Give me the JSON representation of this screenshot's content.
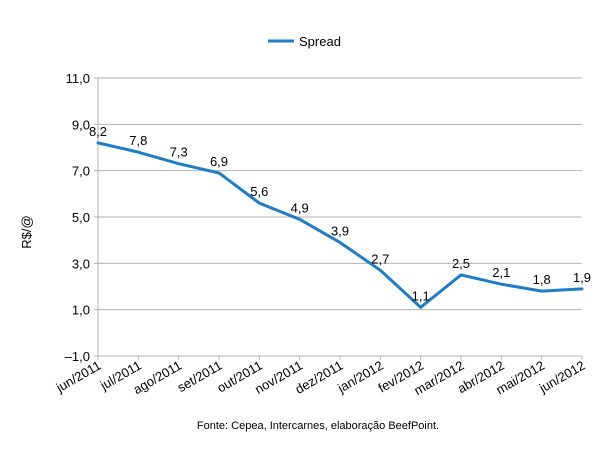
{
  "chart_data": {
    "type": "line",
    "categories": [
      "jun/2011",
      "jul/2011",
      "ago/2011",
      "set/2011",
      "out/2011",
      "nov/2011",
      "dez/2011",
      "jan/2012",
      "fev/2012",
      "mar/2012",
      "abr/2012",
      "mai/2012",
      "jun/2012"
    ],
    "series": [
      {
        "name": "Spread",
        "values": [
          8.2,
          7.8,
          7.3,
          6.9,
          5.6,
          4.9,
          3.9,
          2.7,
          1.1,
          2.5,
          2.1,
          1.8,
          1.9
        ],
        "labels": [
          "8,2",
          "7,8",
          "7,3",
          "6,9",
          "5,6",
          "4,9",
          "3,9",
          "2,7",
          "1,1",
          "2,5",
          "2,1",
          "1,8",
          "1,9"
        ],
        "color": "#1F7CC8"
      }
    ],
    "ylabel": "R$/@",
    "ylim": [
      -1,
      11
    ],
    "yticks": [
      -1,
      1,
      3,
      5,
      7,
      9,
      11
    ],
    "ytick_labels": [
      "–1,0",
      "1,0",
      "3,0",
      "5,0",
      "7,0",
      "9,0",
      "11,0"
    ],
    "grid": true,
    "legend": "top-center",
    "source": "Fonte: Cepea, Intercarnes, elaboração BeefPoint."
  }
}
